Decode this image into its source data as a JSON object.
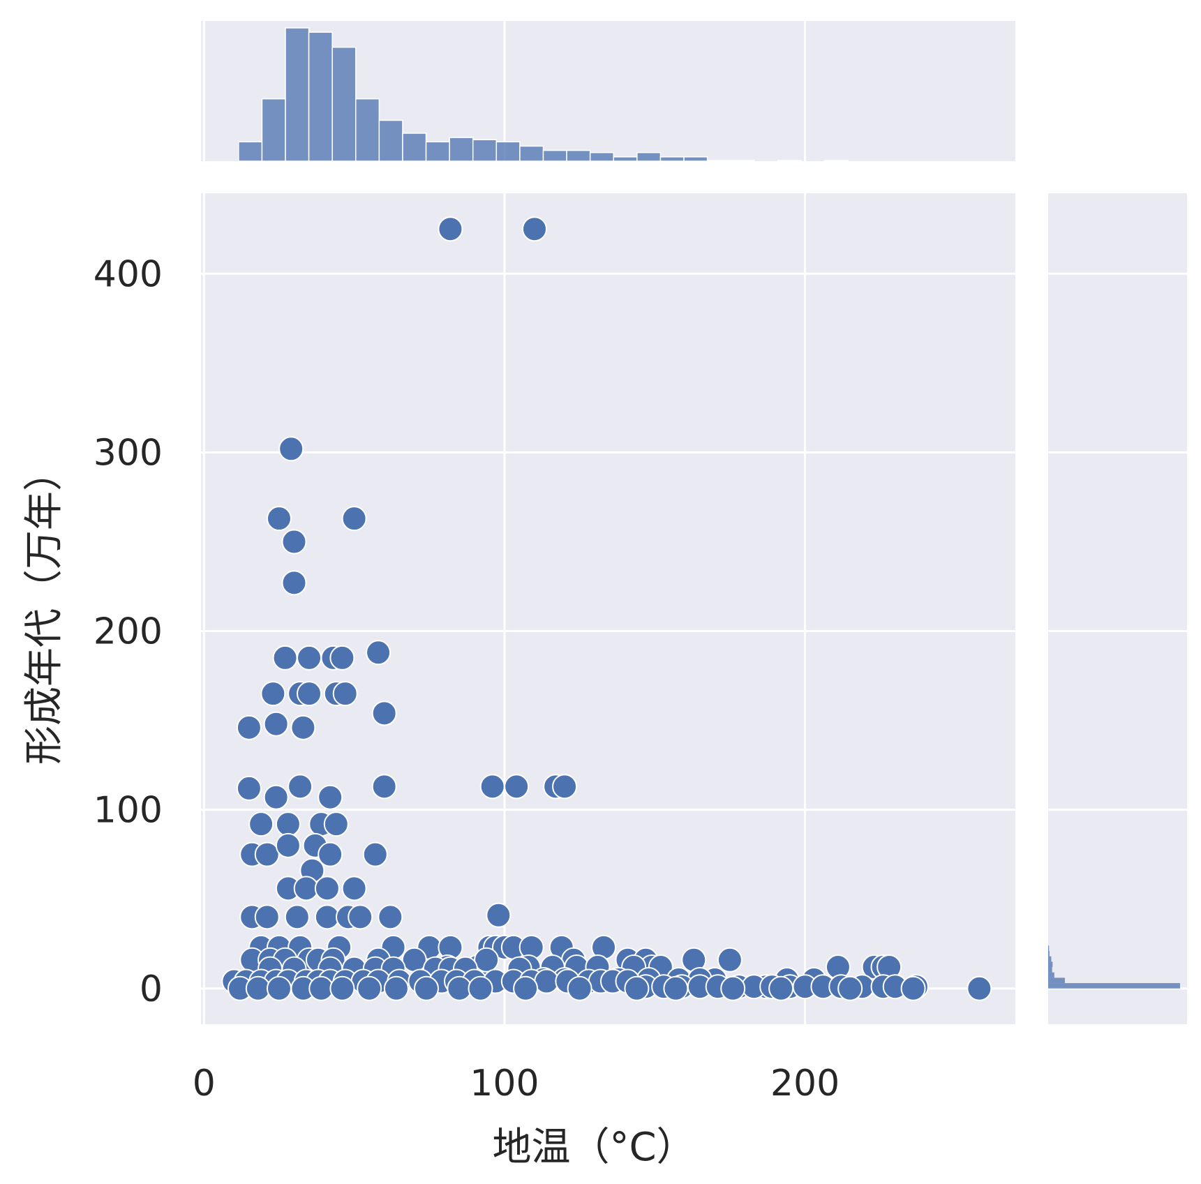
{
  "chart_data": {
    "type": "scatter",
    "title": "",
    "xlabel": "地温（°C）",
    "ylabel": "形成年代（万年）",
    "xlim": [
      -1,
      270
    ],
    "ylim": [
      -20,
      445
    ],
    "xticks": [
      "0",
      "100",
      "200"
    ],
    "yticks": [
      "0",
      "100",
      "200",
      "300",
      "400"
    ],
    "xtick_values": [
      0,
      100,
      200
    ],
    "ytick_values": [
      0,
      100,
      200,
      300,
      400
    ],
    "grid": true,
    "marginal_x": {
      "type": "histogram",
      "bin_edges": [
        11.5,
        19.3,
        27.1,
        34.9,
        42.7,
        50.5,
        58.3,
        66.1,
        73.9,
        81.7,
        89.5,
        97.3,
        105.1,
        112.9,
        120.7,
        128.5,
        136.3,
        144.1,
        151.9,
        159.7,
        167.5,
        175.3,
        183.1,
        190.9,
        198.7,
        206.5,
        214.3,
        222.1,
        229.9
      ],
      "counts": [
        9,
        29,
        62,
        60,
        53,
        29,
        19,
        13,
        9,
        11,
        10,
        9,
        7,
        5,
        5,
        4,
        2,
        4,
        2,
        2,
        0.3,
        0.3,
        0,
        0.3,
        0,
        0.3,
        0,
        0
      ]
    },
    "marginal_y": {
      "type": "histogram",
      "orientation": "horizontal",
      "bin_edges": [
        0,
        3,
        6,
        9,
        12,
        15,
        18,
        21,
        24
      ],
      "counts": [
        300,
        38,
        14,
        9,
        10,
        7,
        3,
        2
      ]
    },
    "series": [
      {
        "x": [
          82,
          110,
          29,
          25,
          50,
          30,
          30,
          58,
          27,
          35,
          43,
          46,
          60,
          23,
          32,
          35,
          44,
          47,
          15,
          24,
          33,
          15,
          32,
          60,
          24,
          42,
          96,
          104,
          117,
          120,
          19,
          28,
          39,
          44,
          16,
          21,
          28,
          37,
          42,
          36,
          28,
          34,
          41,
          50,
          57,
          16,
          21,
          31,
          41,
          48,
          52,
          62,
          98,
          19,
          25,
          32,
          45,
          63,
          75,
          82,
          95,
          97,
          100,
          103,
          109,
          119,
          123,
          133,
          141,
          147,
          149,
          163,
          175,
          16,
          22,
          27,
          35,
          38,
          43,
          58,
          70,
          81,
          91,
          94,
          108,
          116,
          124,
          131,
          143,
          152,
          170,
          194,
          203,
          211,
          223,
          226,
          228,
          22,
          30,
          42,
          50,
          57,
          63,
          77,
          82,
          87,
          105,
          113,
          120,
          138,
          148,
          158,
          165,
          187,
          10,
          14,
          19,
          24,
          28,
          34,
          38,
          42,
          47,
          53,
          58,
          65,
          72,
          79,
          84,
          90,
          97,
          103,
          109,
          114,
          121,
          128,
          132,
          136,
          141,
          147,
          153,
          159,
          165,
          171,
          178,
          183,
          189,
          195,
          200,
          206,
          212,
          219,
          226,
          230,
          237,
          258,
          12,
          18,
          25,
          33,
          39,
          46,
          55,
          64,
          74,
          85,
          92,
          107,
          125,
          144,
          157,
          176,
          192,
          215,
          236
        ],
        "y": [
          425,
          425,
          302,
          263,
          263,
          250,
          227,
          188,
          185,
          185,
          185,
          185,
          154,
          165,
          165,
          165,
          165,
          165,
          146,
          148,
          146,
          112,
          113,
          113,
          107,
          107,
          113,
          113,
          113,
          113,
          92,
          92,
          92,
          92,
          75,
          75,
          80,
          80,
          75,
          66,
          56,
          56,
          56,
          56,
          75,
          40,
          40,
          40,
          40,
          40,
          40,
          40,
          41,
          23,
          23,
          23,
          23,
          23,
          23,
          23,
          23,
          23,
          23,
          23,
          23,
          23,
          16,
          23,
          16,
          16,
          12,
          16,
          16,
          16,
          16,
          16,
          16,
          16,
          16,
          16,
          16,
          12,
          12,
          16,
          12,
          12,
          12,
          12,
          12,
          12,
          5,
          5,
          5,
          12,
          12,
          12,
          12,
          11,
          11,
          11,
          11,
          11,
          11,
          11,
          11,
          11,
          11,
          5,
          5,
          5,
          5,
          5,
          5,
          1,
          4,
          4,
          4,
          4,
          4,
          4,
          4,
          4,
          4,
          4,
          4,
          4,
          4,
          4,
          4,
          4,
          4,
          4,
          4,
          4,
          4,
          4,
          4,
          4,
          4,
          1,
          1,
          1,
          1,
          1,
          1,
          1,
          1,
          1,
          1,
          1,
          1,
          1,
          1,
          1,
          1,
          0,
          0,
          0,
          0,
          0,
          0,
          0,
          0,
          0,
          0,
          0,
          0,
          0,
          0,
          0,
          0,
          0,
          0,
          0,
          0
        ],
        "color": "#4c72b0"
      }
    ],
    "colors": {
      "background": "#eaeaf2",
      "marker": "#4c72b0",
      "hist": "#4c72b0"
    }
  }
}
